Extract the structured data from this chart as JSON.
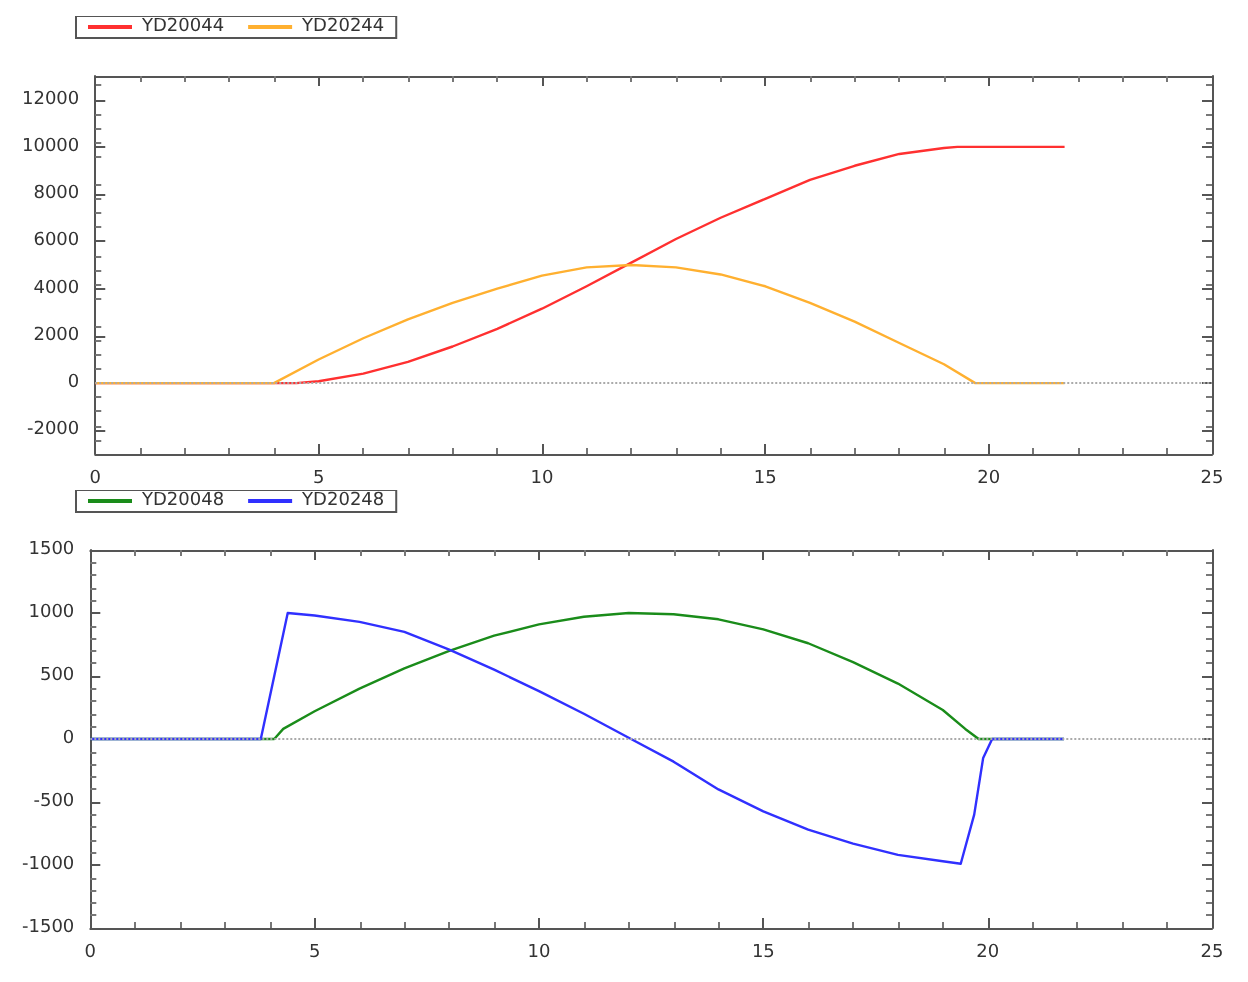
{
  "chart_data": [
    {
      "type": "line",
      "legend": "top left",
      "grid": false,
      "xlim": [
        0,
        25
      ],
      "xticks": [
        0,
        5,
        10,
        15,
        20,
        25
      ],
      "ylim": [
        -3000,
        13000
      ],
      "yticks": [
        -2000,
        0,
        2000,
        4000,
        6000,
        8000,
        10000,
        12000
      ],
      "ref_lines": [
        {
          "axis": "y",
          "value": 0,
          "color": "#aaaaaa",
          "line_style": "dotted"
        }
      ],
      "series": [
        {
          "name": "YD20044",
          "color": "#ff3030",
          "x": [
            0,
            4.5,
            5,
            6,
            7,
            8,
            9,
            10,
            11,
            12,
            13,
            14,
            15,
            16,
            17,
            18,
            19,
            19.3,
            21.7
          ],
          "values": [
            0,
            0,
            80,
            400,
            900,
            1550,
            2300,
            3150,
            4100,
            5100,
            6100,
            7000,
            7800,
            8600,
            9200,
            9700,
            9950,
            10000,
            10000
          ]
        },
        {
          "name": "YD20244",
          "color": "#ffb030",
          "x": [
            0,
            4,
            5,
            6,
            7,
            8,
            9,
            10,
            11,
            12,
            13,
            14,
            15,
            16,
            17,
            18,
            19,
            19.7,
            21.7
          ],
          "values": [
            0,
            0,
            1000,
            1900,
            2700,
            3400,
            4000,
            4550,
            4900,
            5000,
            4900,
            4600,
            4100,
            3400,
            2600,
            1700,
            800,
            0,
            0
          ]
        }
      ]
    },
    {
      "type": "line",
      "legend": "top left",
      "grid": false,
      "xlim": [
        0,
        25
      ],
      "xticks": [
        0,
        5,
        10,
        15,
        20,
        25
      ],
      "ylim": [
        -1500,
        1500
      ],
      "yticks": [
        -1500,
        -1000,
        -500,
        0,
        500,
        1000,
        1500
      ],
      "ref_lines": [
        {
          "axis": "y",
          "value": 0,
          "color": "#aaaaaa",
          "line_style": "dotted"
        }
      ],
      "series": [
        {
          "name": "YD20048",
          "color": "#1a8c1a",
          "x": [
            0,
            4.1,
            4.3,
            5,
            6,
            7,
            8,
            9,
            10,
            11,
            12,
            13,
            14,
            15,
            16,
            17,
            18,
            19,
            19.5,
            19.8,
            21.7
          ],
          "values": [
            0,
            0,
            80,
            220,
            400,
            560,
            700,
            820,
            910,
            970,
            1000,
            990,
            950,
            870,
            760,
            610,
            440,
            230,
            80,
            0,
            0
          ]
        },
        {
          "name": "YD20248",
          "color": "#3030ff",
          "x": [
            0,
            3.8,
            4.1,
            4.4,
            5,
            6,
            7,
            8,
            9,
            10,
            11,
            12,
            13,
            14,
            15,
            16,
            17,
            18,
            19,
            19.4,
            19.7,
            19.9,
            20.1,
            21.7
          ],
          "values": [
            0,
            0,
            500,
            1000,
            980,
            930,
            850,
            710,
            550,
            380,
            200,
            10,
            -180,
            -400,
            -575,
            -720,
            -830,
            -920,
            -970,
            -990,
            -600,
            -150,
            0,
            0
          ]
        }
      ]
    }
  ]
}
